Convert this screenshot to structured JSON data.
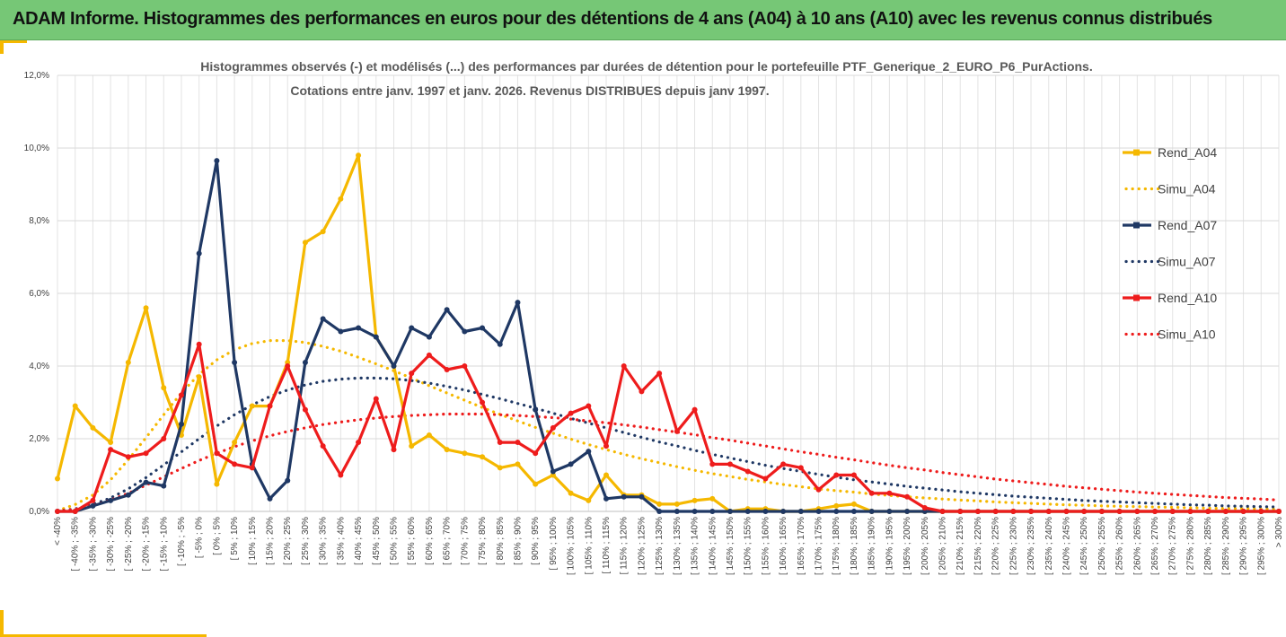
{
  "banner": {
    "title": "ADAM Informe. Histogrammes des performances en euros pour des détentions de 4 ans (A04) à 10 ans (A10) avec les revenus connus distribués"
  },
  "colors": {
    "banner_bg": "#76c776",
    "accent": "#f5b800",
    "a04": "#f5b800",
    "a07": "#1f3864",
    "a10": "#ee1c1c"
  },
  "chart_data": {
    "type": "line",
    "title": [
      "Histogrammes observés (-) et modélisés (...) des performances par durées de détention pour le portefeuille PTF_Generique_2_EURO_P6_PurActions.",
      "Cotations entre janv. 1997 et janv. 2026. Revenus DISTRIBUES depuis janv 1997."
    ],
    "ylim": [
      0,
      12
    ],
    "y_ticks": [
      "0,0%",
      "2,0%",
      "4,0%",
      "6,0%",
      "8,0%",
      "10,0%",
      "12,0%"
    ],
    "categories": [
      "< -40%",
      "[ -40% ; -35%",
      "[ -35% ; -30%",
      "[ -30% ; -25%",
      "[ -25% ; -20%",
      "[ -20% ; -15%",
      "[ -15% ; -10%",
      "[ -10% ; -5%",
      "[ -5% ; 0%",
      "[ 0% ; 5%",
      "[ 5% ; 10%",
      "[ 10% ; 15%",
      "[ 15% ; 20%",
      "[ 20% ; 25%",
      "[ 25% ; 30%",
      "[ 30% ; 35%",
      "[ 35% ; 40%",
      "[ 40% ; 45%",
      "[ 45% ; 50%",
      "[ 50% ; 55%",
      "[ 55% ; 60%",
      "[ 60% ; 65%",
      "[ 65% ; 70%",
      "[ 70% ; 75%",
      "[ 75% ; 80%",
      "[ 80% ; 85%",
      "[ 85% ; 90%",
      "[ 90% ; 95%",
      "[ 95% ; 100%",
      "[ 100% ; 105%",
      "[ 105% ; 110%",
      "[ 110% ; 115%",
      "[ 115% ; 120%",
      "[ 120% ; 125%",
      "[ 125% ; 130%",
      "[ 130% ; 135%",
      "[ 135% ; 140%",
      "[ 140% ; 145%",
      "[ 145% ; 150%",
      "[ 150% ; 155%",
      "[ 155% ; 160%",
      "[ 160% ; 165%",
      "[ 165% ; 170%",
      "[ 170% ; 175%",
      "[ 175% ; 180%",
      "[ 180% ; 185%",
      "[ 185% ; 190%",
      "[ 190% ; 195%",
      "[ 195% ; 200%",
      "[ 200% ; 205%",
      "[ 205% ; 210%",
      "[ 210% ; 215%",
      "[ 215% ; 220%",
      "[ 220% ; 225%",
      "[ 225% ; 230%",
      "[ 230% ; 235%",
      "[ 235% ; 240%",
      "[ 240% ; 245%",
      "[ 245% ; 250%",
      "[ 250% ; 255%",
      "[ 255% ; 260%",
      "[ 260% ; 265%",
      "[ 265% ; 270%",
      "[ 270% ; 275%",
      "[ 275% ; 280%",
      "[ 280% ; 285%",
      "[ 285% ; 290%",
      "[ 290% ; 295%",
      "[ 295% ; 300%",
      "> 300%"
    ],
    "series": [
      {
        "name": "Rend_A04",
        "style": "solid",
        "color": "#f5b800",
        "values": [
          0.9,
          2.9,
          2.3,
          1.9,
          4.1,
          5.6,
          3.4,
          2.1,
          3.7,
          0.75,
          1.9,
          2.9,
          2.9,
          4.1,
          7.4,
          7.7,
          8.6,
          9.8,
          4.8,
          4.0,
          1.8,
          2.1,
          1.7,
          1.6,
          1.5,
          1.2,
          1.3,
          0.75,
          1.0,
          0.5,
          0.3,
          1.0,
          0.45,
          0.45,
          0.2,
          0.2,
          0.3,
          0.35,
          0,
          0.07,
          0.07,
          0,
          0,
          0.07,
          0.15,
          0.2,
          0,
          0,
          0,
          0,
          0,
          0,
          0,
          0,
          0,
          0,
          0,
          0,
          0,
          0,
          0,
          0,
          0,
          0,
          0,
          0,
          0,
          0,
          0,
          0
        ]
      },
      {
        "name": "Simu_A04",
        "style": "dotted",
        "color": "#f5b800",
        "values": [
          0.02,
          0.19,
          0.45,
          0.87,
          1.42,
          2.03,
          2.66,
          3.26,
          3.77,
          4.17,
          4.45,
          4.62,
          4.7,
          4.7,
          4.65,
          4.54,
          4.41,
          4.24,
          4.06,
          3.87,
          3.67,
          3.46,
          3.26,
          3.06,
          2.86,
          2.67,
          2.49,
          2.31,
          2.15,
          1.99,
          1.84,
          1.7,
          1.57,
          1.45,
          1.34,
          1.23,
          1.13,
          1.04,
          0.96,
          0.88,
          0.81,
          0.74,
          0.68,
          0.62,
          0.57,
          0.53,
          0.48,
          0.44,
          0.4,
          0.37,
          0.34,
          0.31,
          0.29,
          0.26,
          0.24,
          0.22,
          0.2,
          0.18,
          0.17,
          0.15,
          0.14,
          0.13,
          0.12,
          0.11,
          0.1,
          0.09,
          0.08,
          0.08,
          0.07,
          0.06
        ]
      },
      {
        "name": "Rend_A07",
        "style": "solid",
        "color": "#1f3864",
        "values": [
          0,
          0,
          0.15,
          0.3,
          0.45,
          0.8,
          0.7,
          2.4,
          7.1,
          9.65,
          4.1,
          1.3,
          0.35,
          0.85,
          4.1,
          5.3,
          4.95,
          5.05,
          4.8,
          4.0,
          5.05,
          4.8,
          5.55,
          4.95,
          5.05,
          4.6,
          5.75,
          2.8,
          1.1,
          1.3,
          1.65,
          0.35,
          0.4,
          0.4,
          0,
          0,
          0,
          0,
          0,
          0,
          0,
          0,
          0,
          0,
          0,
          0,
          0,
          0,
          0,
          0,
          0,
          0,
          0,
          0,
          0,
          0,
          0,
          0,
          0,
          0,
          0,
          0,
          0,
          0,
          0,
          0,
          0,
          0,
          0,
          0
        ]
      },
      {
        "name": "Simu_A07",
        "style": "dotted",
        "color": "#1f3864",
        "values": [
          0.01,
          0.07,
          0.19,
          0.37,
          0.62,
          0.93,
          1.28,
          1.64,
          2.0,
          2.35,
          2.66,
          2.93,
          3.16,
          3.34,
          3.48,
          3.58,
          3.64,
          3.67,
          3.67,
          3.65,
          3.6,
          3.53,
          3.44,
          3.34,
          3.22,
          3.1,
          2.97,
          2.84,
          2.7,
          2.56,
          2.43,
          2.3,
          2.17,
          2.04,
          1.91,
          1.8,
          1.68,
          1.57,
          1.47,
          1.37,
          1.27,
          1.18,
          1.1,
          1.02,
          0.94,
          0.87,
          0.81,
          0.75,
          0.69,
          0.64,
          0.59,
          0.54,
          0.5,
          0.46,
          0.42,
          0.39,
          0.36,
          0.33,
          0.3,
          0.28,
          0.26,
          0.24,
          0.22,
          0.2,
          0.18,
          0.17,
          0.15,
          0.14,
          0.13,
          0.12
        ]
      },
      {
        "name": "Rend_A10",
        "style": "solid",
        "color": "#ee1c1c",
        "values": [
          0,
          0,
          0.3,
          1.7,
          1.5,
          1.6,
          2.0,
          3.2,
          4.6,
          1.6,
          1.3,
          1.2,
          2.9,
          4.0,
          2.8,
          1.8,
          1.0,
          1.9,
          3.1,
          1.7,
          3.8,
          4.3,
          3.9,
          4.0,
          3.0,
          1.9,
          1.9,
          1.6,
          2.3,
          2.7,
          2.9,
          1.8,
          4.0,
          3.3,
          3.8,
          2.2,
          2.8,
          1.3,
          1.3,
          1.1,
          0.9,
          1.3,
          1.2,
          0.6,
          1.0,
          1.0,
          0.5,
          0.5,
          0.4,
          0.1,
          0,
          0,
          0,
          0,
          0,
          0,
          0,
          0,
          0,
          0,
          0,
          0,
          0,
          0,
          0,
          0,
          0,
          0,
          0,
          0
        ]
      },
      {
        "name": "Simu_A10",
        "style": "dotted",
        "color": "#ee1c1c",
        "values": [
          0.01,
          0.06,
          0.16,
          0.31,
          0.5,
          0.72,
          0.95,
          1.18,
          1.4,
          1.6,
          1.78,
          1.94,
          2.08,
          2.2,
          2.3,
          2.39,
          2.46,
          2.52,
          2.57,
          2.61,
          2.64,
          2.66,
          2.68,
          2.68,
          2.68,
          2.66,
          2.64,
          2.61,
          2.58,
          2.54,
          2.49,
          2.44,
          2.38,
          2.32,
          2.25,
          2.18,
          2.11,
          2.03,
          1.96,
          1.88,
          1.8,
          1.72,
          1.64,
          1.57,
          1.49,
          1.42,
          1.34,
          1.27,
          1.2,
          1.14,
          1.07,
          1.01,
          0.95,
          0.89,
          0.84,
          0.79,
          0.74,
          0.69,
          0.65,
          0.61,
          0.57,
          0.53,
          0.5,
          0.47,
          0.44,
          0.41,
          0.38,
          0.36,
          0.34,
          0.31
        ]
      }
    ],
    "legend": {
      "position": "right",
      "entries": [
        "Rend_A04",
        "Simu_A04",
        "Rend_A07",
        "Simu_A07",
        "Rend_A10",
        "Simu_A10"
      ]
    },
    "grid": true
  }
}
